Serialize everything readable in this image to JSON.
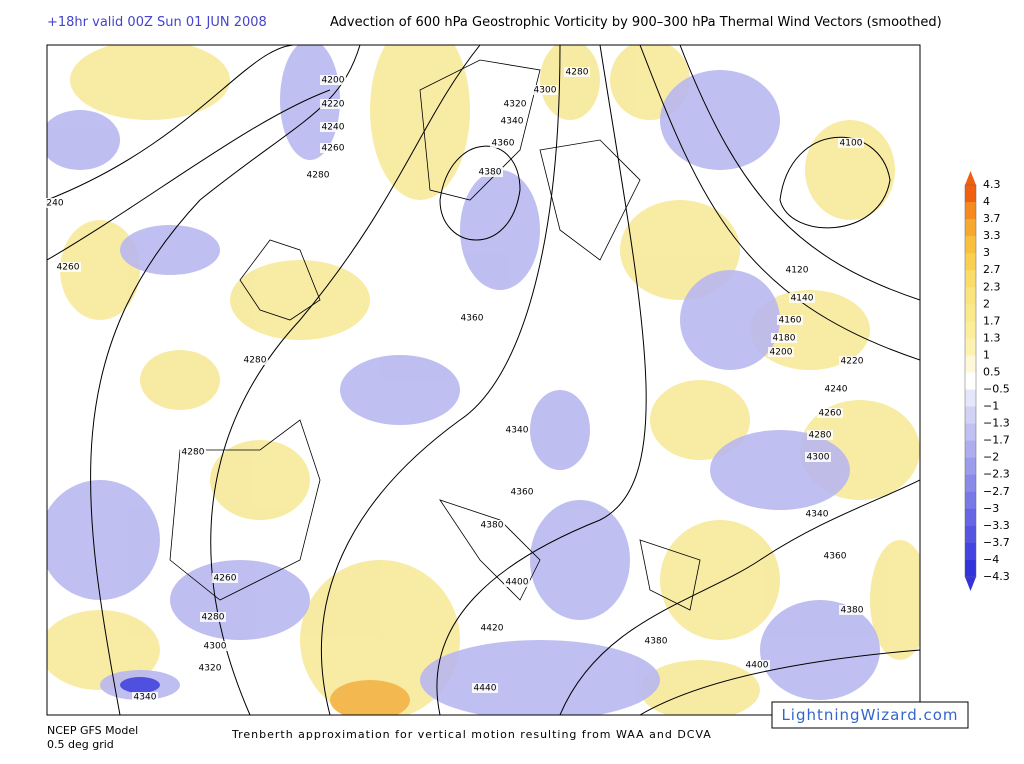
{
  "header": {
    "valid_time": "+18hr valid 00Z Sun 01 JUN 2008",
    "title": "Advection of 600 hPa Geostrophic Vorticity by 900–300 hPa Thermal Wind Vectors (smoothed)"
  },
  "contour_labels": [
    "4200",
    "4220",
    "4240",
    "4260",
    "4280",
    "240",
    "4260",
    "4280",
    "4280",
    "4260",
    "4280",
    "4300",
    "4320",
    "4340",
    "4360",
    "4340",
    "4360",
    "4380",
    "4400",
    "4420",
    "4440",
    "4280",
    "4300",
    "4320",
    "4340",
    "4360",
    "4380",
    "4100",
    "4120",
    "4140",
    "4160",
    "4180",
    "4200",
    "4220",
    "4240",
    "4260",
    "4280",
    "4300",
    "4340",
    "4360",
    "4380",
    "4380",
    "4400"
  ],
  "colorbar": {
    "labels": [
      "4.3",
      "4",
      "3.7",
      "3.3",
      "3",
      "2.7",
      "2.3",
      "2",
      "1.7",
      "1.3",
      "1",
      "0.5",
      "−0.5",
      "−1",
      "−1.3",
      "−1.7",
      "−2",
      "−2.3",
      "−2.7",
      "−3",
      "−3.3",
      "−3.7",
      "−4",
      "−4.3"
    ]
  },
  "footer": {
    "model": "NCEP GFS Model",
    "grid": "0.5 deg grid",
    "caption": "Trenberth approximation for vertical motion resulting from WAA and DCVA"
  },
  "watermark": "LightningWizard.com"
}
